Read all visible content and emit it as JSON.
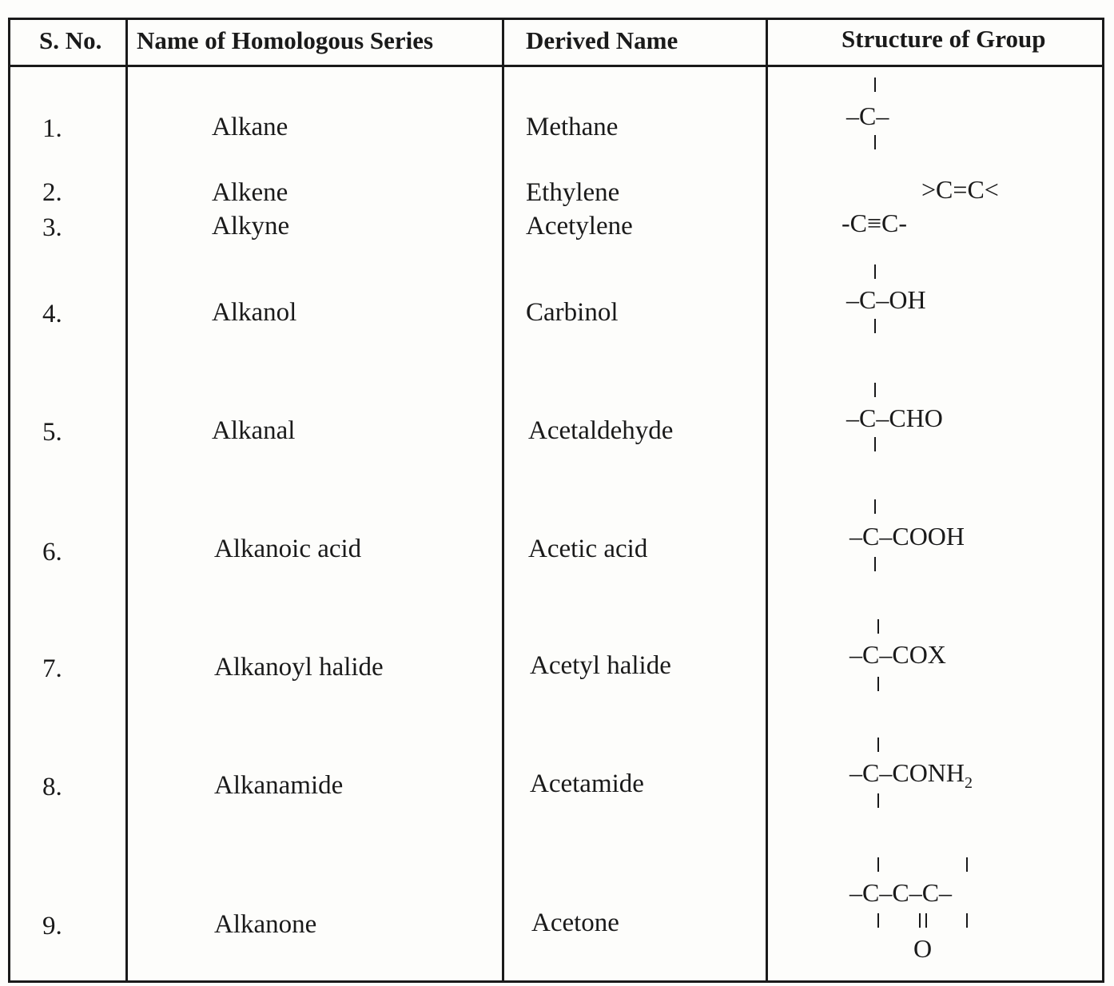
{
  "table": {
    "headers": [
      "S. No.",
      "Name of Homologous Series",
      "Derived Name",
      "Structure of Group"
    ],
    "rows": [
      {
        "sno": "1.",
        "series": "Alkane",
        "derived": "Methane",
        "structure": "-C-"
      },
      {
        "sno": "2.",
        "series": "Alkene",
        "derived": "Ethylene",
        "structure": ">C=C<"
      },
      {
        "sno": "3.",
        "series": "Alkyne",
        "derived": "Acetylene",
        "structure": "-C≡C-"
      },
      {
        "sno": "4.",
        "series": "Alkanol",
        "derived": "Carbinol",
        "structure": "-C-OH"
      },
      {
        "sno": "5.",
        "series": "Alkanal",
        "derived": "Acetaldehyde",
        "structure": "-C-CHO"
      },
      {
        "sno": "6.",
        "series": "Alkanoic acid",
        "derived": "Acetic acid",
        "structure": "-C-COOH"
      },
      {
        "sno": "7.",
        "series": "Alkanoyl halide",
        "derived": "Acetyl halide",
        "structure": "-C-COX"
      },
      {
        "sno": "8.",
        "series": "Alkanamide",
        "derived": "Acetamide",
        "structure": "-C-CONH2"
      },
      {
        "sno": "9.",
        "series": "Alkanone",
        "derived": "Acetone",
        "structure": "-C-C-C-"
      }
    ],
    "labels": {
      "cho": "-CHO",
      "cooh": "-COOH",
      "cox": "-COX",
      "conh": "-CONH",
      "sub2": "2",
      "oh": "-OH",
      "o": "O",
      "c": "C",
      "dash": "–",
      "dblbond": "‖"
    }
  }
}
